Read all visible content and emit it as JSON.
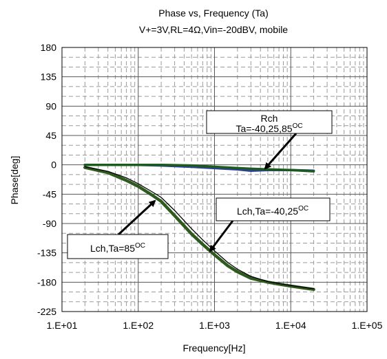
{
  "chart_data": {
    "type": "line",
    "title": "Phase vs, Frequency (Ta)",
    "subtitle": "V+=3V,RL=4Ω,Vin=-20dBV, mobile",
    "xlabel": "Frequency[Hz]",
    "ylabel": "Phase[deg]",
    "x_scale": "log",
    "xlim": [
      10,
      100000
    ],
    "ylim": [
      -225,
      180
    ],
    "x_ticks": [
      {
        "value": 10,
        "label": "1.E+01"
      },
      {
        "value": 100,
        "label": "1.E+02"
      },
      {
        "value": 1000,
        "label": "1.E+03"
      },
      {
        "value": 10000,
        "label": "1.E+04"
      },
      {
        "value": 100000,
        "label": "1.E+05"
      }
    ],
    "y_ticks": [
      {
        "value": 180,
        "label": "180"
      },
      {
        "value": 135,
        "label": "135"
      },
      {
        "value": 90,
        "label": "90"
      },
      {
        "value": 45,
        "label": "45"
      },
      {
        "value": 0,
        "label": "0"
      },
      {
        "value": -45,
        "label": "-45"
      },
      {
        "value": -90,
        "label": "-90"
      },
      {
        "value": -135,
        "label": "-135"
      },
      {
        "value": -180,
        "label": "-180"
      },
      {
        "value": -225,
        "label": "-225"
      }
    ],
    "grid": true,
    "series": [
      {
        "name": "",
        "color": "#2c3f9a",
        "width": 3.5,
        "x": [
          20,
          50,
          100,
          200,
          500,
          1000,
          2000,
          3000,
          5000,
          10000,
          20000
        ],
        "y": [
          0,
          0,
          0,
          -1,
          -3,
          -5,
          -7,
          -9,
          -8,
          -8,
          -9
        ]
      },
      {
        "name": "",
        "color": "#1d5a1d",
        "width": 3.5,
        "x": [
          20,
          50,
          100,
          200,
          500,
          1000,
          2000,
          3000,
          5000,
          10000,
          20000
        ],
        "y": [
          0,
          0,
          0,
          0,
          -1,
          -3,
          -5,
          -6,
          -7,
          -8,
          -10
        ]
      },
      {
        "name": "",
        "color": "#2e5a1e",
        "width": 4.5,
        "x": [
          20,
          40,
          70,
          100,
          150,
          200,
          300,
          500,
          700,
          1000,
          1500,
          2000,
          3000,
          5000,
          7000,
          10000,
          15000,
          20000
        ],
        "y": [
          -4,
          -12,
          -24,
          -33,
          -46,
          -56,
          -78,
          -106,
          -122,
          -138,
          -155,
          -164,
          -174,
          -180,
          -183,
          -186,
          -189,
          -191
        ]
      },
      {
        "name": "",
        "color": "#000000",
        "width": 1.3,
        "x": [
          20,
          40,
          70,
          100,
          150,
          200,
          300,
          500,
          700,
          1000,
          1500,
          2000,
          3000,
          5000,
          7000,
          10000,
          15000,
          20000
        ],
        "y": [
          -3,
          -10,
          -20,
          -29,
          -41,
          -50,
          -70,
          -98,
          -115,
          -132,
          -150,
          -160,
          -171,
          -179,
          -182,
          -185,
          -188,
          -190
        ]
      }
    ],
    "annotations": [
      {
        "lines": [
          "Rch",
          "Ta=-40,25,85",
          "OC"
        ],
        "arrow_to": [
          4500,
          -5
        ]
      },
      {
        "lines": [
          "Lch,Ta=-40,25",
          "OC"
        ],
        "arrow_to": [
          1100,
          -145
        ]
      },
      {
        "lines": [
          "Lch,Ta=85",
          "OC"
        ],
        "arrow_to": [
          190,
          -55
        ]
      }
    ]
  }
}
